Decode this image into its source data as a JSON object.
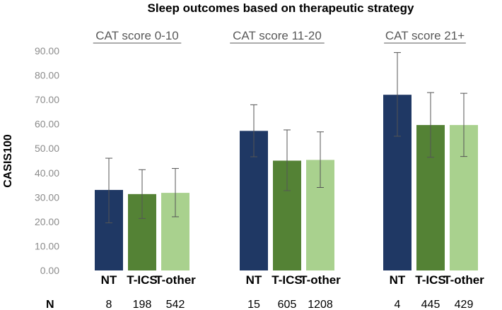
{
  "chart_data": {
    "type": "bar",
    "title": "Sleep outcomes based on therapeutic strategy",
    "ylabel": "CASIS100",
    "xlabel": "",
    "ylim": [
      0,
      90
    ],
    "yticks": [
      "0.00",
      "10.00",
      "20.00",
      "30.00",
      "40.00",
      "50.00",
      "60.00",
      "70.00",
      "80.00",
      "90.00"
    ],
    "ytick_values": [
      0,
      10,
      20,
      30,
      40,
      50,
      60,
      70,
      80,
      90
    ],
    "n_label": "N",
    "categories": [
      "NT",
      "T-ICS",
      "T-other"
    ],
    "colors": [
      "#1f3864",
      "#548235",
      "#a9d18e"
    ],
    "groups": [
      {
        "label": "CAT score 0-10",
        "values": [
          33.0,
          31.3,
          31.8
        ],
        "err_low": [
          19.5,
          21.3,
          22.0
        ],
        "err_high": [
          46.0,
          41.3,
          41.8
        ],
        "n": [
          "8",
          "198",
          "542"
        ]
      },
      {
        "label": "CAT score 11-20",
        "values": [
          57.2,
          45.0,
          45.3
        ],
        "err_low": [
          46.6,
          32.7,
          34.0
        ],
        "err_high": [
          67.9,
          57.6,
          56.8
        ],
        "n": [
          "15",
          "605",
          "1208"
        ]
      },
      {
        "label": "CAT score 21+",
        "values": [
          72.0,
          59.6,
          59.6
        ],
        "err_low": [
          55.0,
          46.4,
          46.7
        ],
        "err_high": [
          89.3,
          72.9,
          72.6
        ],
        "n": [
          "4",
          "445",
          "429"
        ]
      }
    ]
  }
}
